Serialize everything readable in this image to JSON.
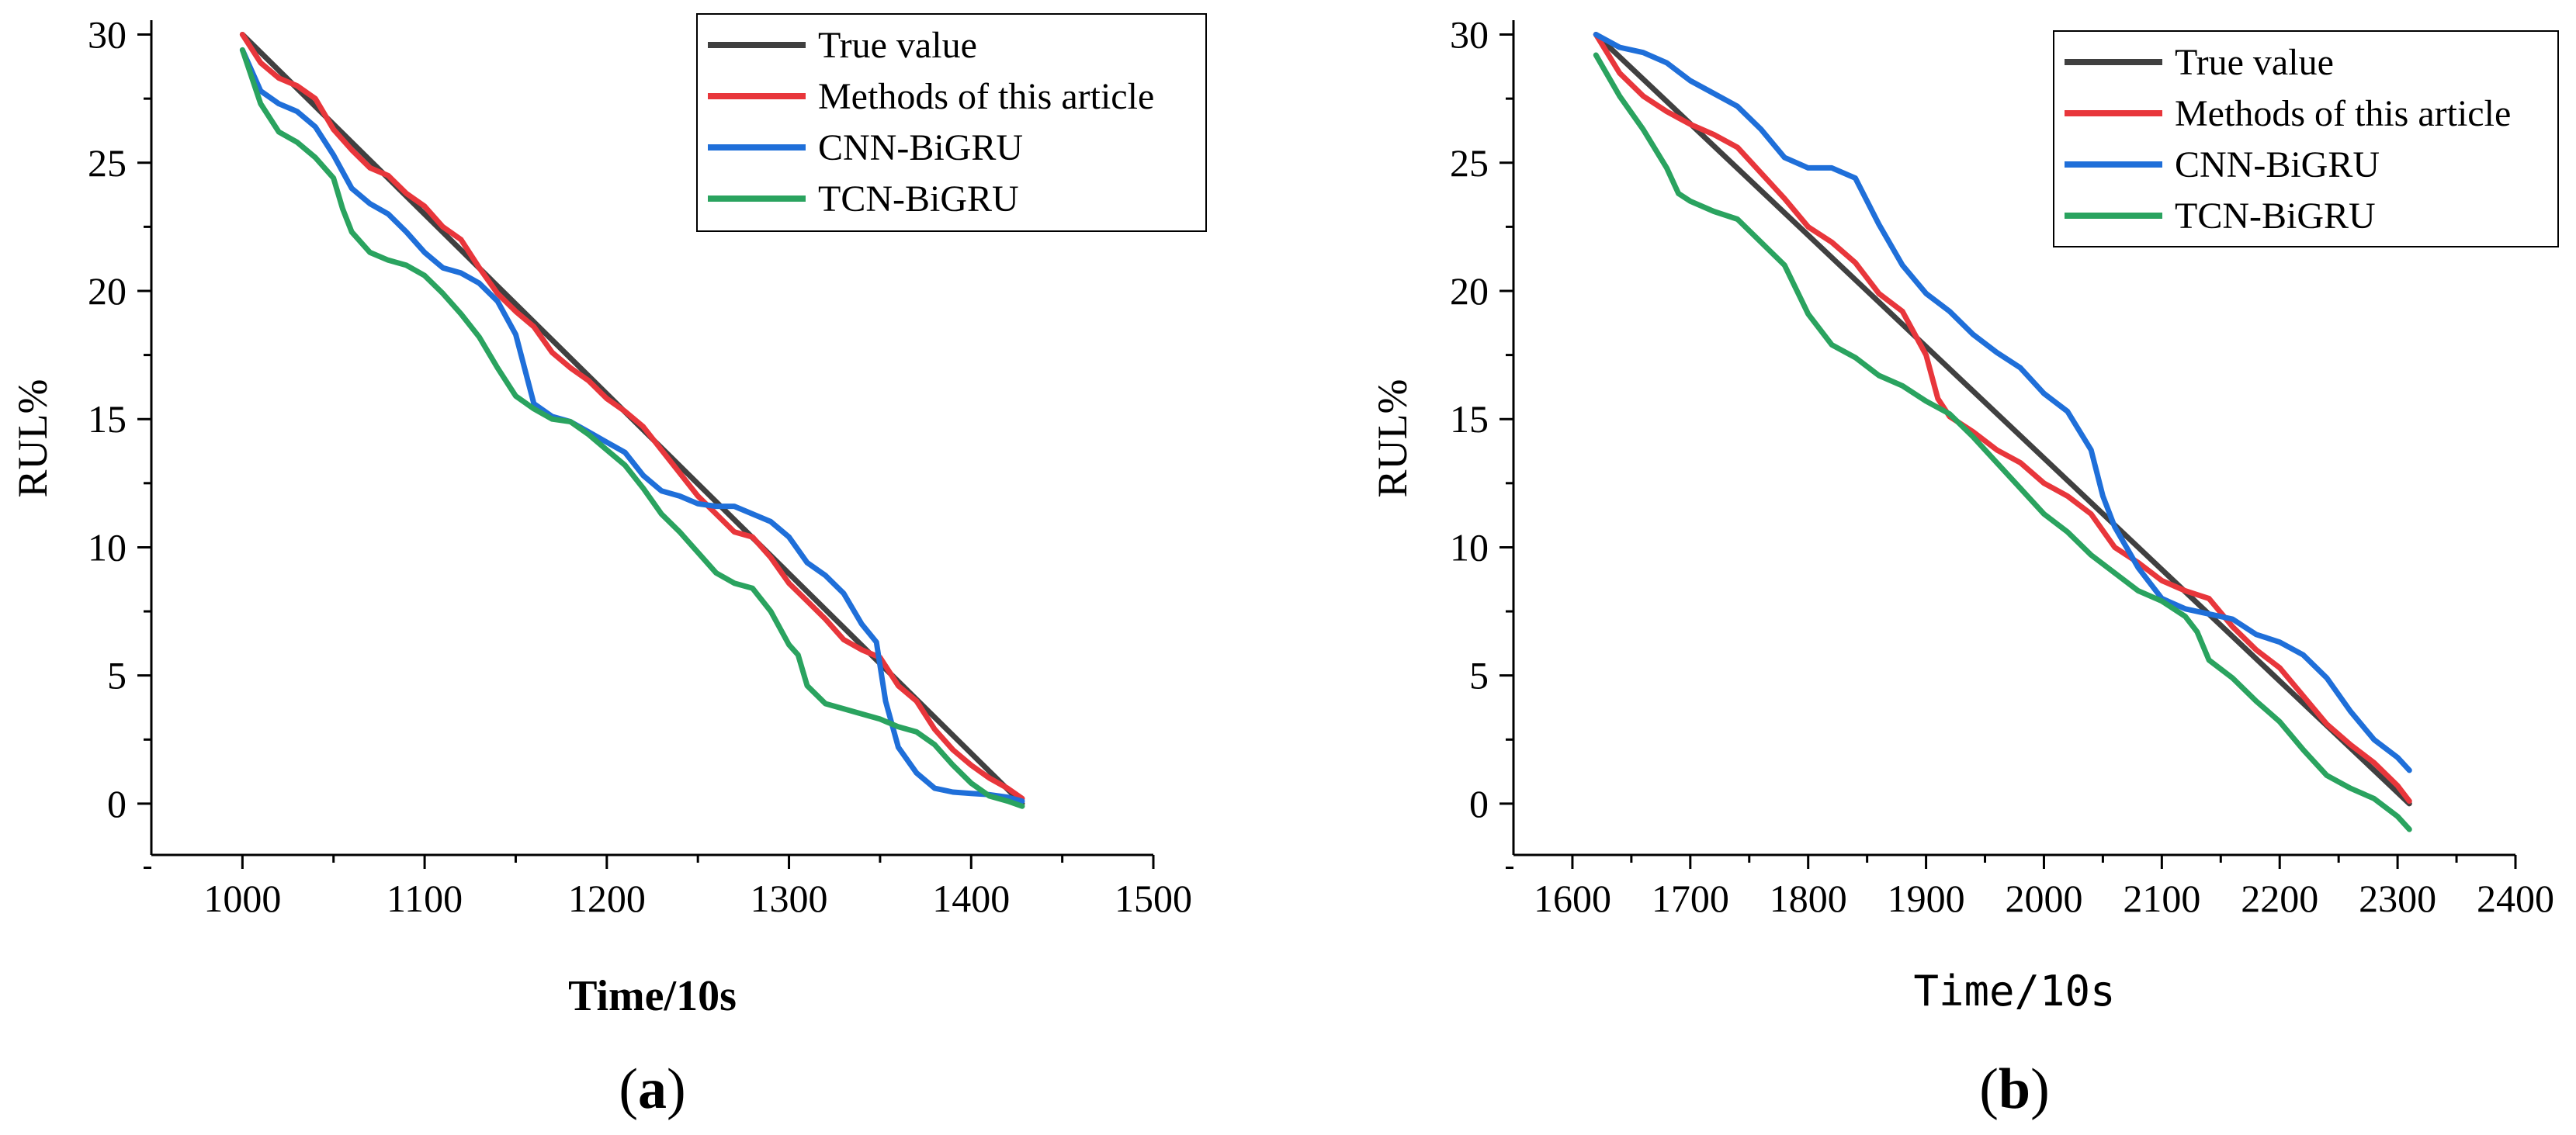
{
  "chart_data": [
    {
      "type": "line",
      "panel_label": {
        "open": "(",
        "letter": "a",
        "close": ")"
      },
      "title": "",
      "xlabel": "Time/10s",
      "ylabel": "RUL%",
      "xlim": [
        950,
        1500
      ],
      "ylim": [
        -2,
        30.5
      ],
      "xticks": [
        1000,
        1100,
        1200,
        1300,
        1400,
        1500
      ],
      "yticks": [
        0,
        5,
        10,
        15,
        20,
        25,
        30
      ],
      "grid": false,
      "legend_position": "top-right",
      "series": [
        {
          "name": "True value",
          "color": "#404040",
          "x": [
            1000,
            1428
          ],
          "y": [
            30,
            0
          ]
        },
        {
          "name": "Methods of this article",
          "color": "#e8363b",
          "x": [
            1000,
            1010,
            1020,
            1030,
            1040,
            1050,
            1060,
            1070,
            1080,
            1090,
            1100,
            1110,
            1120,
            1130,
            1140,
            1150,
            1160,
            1170,
            1180,
            1190,
            1200,
            1210,
            1220,
            1230,
            1240,
            1250,
            1260,
            1270,
            1280,
            1290,
            1300,
            1310,
            1320,
            1330,
            1340,
            1350,
            1360,
            1370,
            1380,
            1390,
            1400,
            1410,
            1420,
            1428
          ],
          "y": [
            30,
            28.9,
            28.3,
            28,
            27.5,
            26.3,
            25.5,
            24.8,
            24.5,
            23.8,
            23.3,
            22.5,
            22,
            20.9,
            19.9,
            19.2,
            18.6,
            17.6,
            17,
            16.5,
            15.8,
            15.3,
            14.7,
            13.8,
            12.9,
            12,
            11.3,
            10.6,
            10.4,
            9.6,
            8.6,
            7.9,
            7.2,
            6.4,
            6,
            5.7,
            4.6,
            4,
            2.9,
            2.1,
            1.5,
            1,
            0.6,
            0.2
          ]
        },
        {
          "name": "CNN-BiGRU",
          "color": "#1f6fd9",
          "x": [
            1000,
            1010,
            1020,
            1030,
            1040,
            1050,
            1060,
            1070,
            1080,
            1090,
            1100,
            1110,
            1120,
            1130,
            1140,
            1150,
            1160,
            1170,
            1180,
            1190,
            1200,
            1210,
            1220,
            1230,
            1240,
            1250,
            1260,
            1270,
            1280,
            1290,
            1300,
            1310,
            1320,
            1330,
            1340,
            1348,
            1353,
            1360,
            1370,
            1380,
            1390,
            1400,
            1410,
            1420,
            1428
          ],
          "y": [
            29.4,
            27.8,
            27.3,
            27,
            26.4,
            25.3,
            24,
            23.4,
            23,
            22.3,
            21.5,
            20.9,
            20.7,
            20.3,
            19.6,
            18.3,
            15.6,
            15.1,
            14.9,
            14.5,
            14.1,
            13.7,
            12.8,
            12.2,
            12,
            11.7,
            11.6,
            11.6,
            11.3,
            11,
            10.4,
            9.4,
            8.9,
            8.2,
            7,
            6.3,
            4,
            2.2,
            1.2,
            0.6,
            0.45,
            0.4,
            0.35,
            0.25,
            0.1
          ]
        },
        {
          "name": "TCN-BiGRU",
          "color": "#2aa35f",
          "x": [
            1000,
            1010,
            1020,
            1030,
            1040,
            1050,
            1055,
            1060,
            1070,
            1080,
            1090,
            1100,
            1110,
            1120,
            1130,
            1140,
            1150,
            1160,
            1170,
            1180,
            1190,
            1200,
            1210,
            1220,
            1230,
            1240,
            1250,
            1260,
            1270,
            1280,
            1290,
            1300,
            1305,
            1310,
            1320,
            1330,
            1340,
            1350,
            1360,
            1370,
            1380,
            1390,
            1400,
            1410,
            1420,
            1428
          ],
          "y": [
            29.4,
            27.3,
            26.2,
            25.8,
            25.2,
            24.4,
            23.2,
            22.3,
            21.5,
            21.2,
            21,
            20.6,
            19.9,
            19.1,
            18.2,
            17,
            15.9,
            15.4,
            15,
            14.9,
            14.4,
            13.8,
            13.2,
            12.3,
            11.3,
            10.6,
            9.8,
            9,
            8.6,
            8.4,
            7.5,
            6.2,
            5.8,
            4.6,
            3.9,
            3.7,
            3.5,
            3.3,
            3,
            2.8,
            2.3,
            1.5,
            0.8,
            0.3,
            0.1,
            -0.1
          ]
        }
      ]
    },
    {
      "type": "line",
      "panel_label": {
        "open": "(",
        "letter": "b",
        "close": ")"
      },
      "title": "",
      "xlabel": "Time/10s",
      "ylabel": "RUL%",
      "xlim": [
        1550,
        2400
      ],
      "ylim": [
        -2,
        30.5
      ],
      "xticks": [
        1600,
        1700,
        1800,
        1900,
        2000,
        2100,
        2200,
        2300,
        2400
      ],
      "yticks": [
        0,
        5,
        10,
        15,
        20,
        25,
        30
      ],
      "grid": false,
      "legend_position": "top-right",
      "series": [
        {
          "name": "True value",
          "color": "#404040",
          "x": [
            1620,
            2310
          ],
          "y": [
            30,
            0
          ]
        },
        {
          "name": "Methods of this article",
          "color": "#e8363b",
          "x": [
            1620,
            1640,
            1660,
            1680,
            1700,
            1720,
            1740,
            1760,
            1780,
            1800,
            1820,
            1840,
            1860,
            1880,
            1900,
            1910,
            1920,
            1940,
            1960,
            1980,
            2000,
            2020,
            2040,
            2060,
            2080,
            2100,
            2120,
            2140,
            2160,
            2180,
            2200,
            2220,
            2240,
            2260,
            2280,
            2300,
            2310
          ],
          "y": [
            30,
            28.5,
            27.6,
            27,
            26.5,
            26.1,
            25.6,
            24.6,
            23.6,
            22.5,
            21.9,
            21.1,
            19.9,
            19.2,
            17.5,
            15.8,
            15.1,
            14.5,
            13.8,
            13.3,
            12.5,
            12,
            11.3,
            10,
            9.4,
            8.7,
            8.3,
            8,
            6.9,
            6,
            5.3,
            4.2,
            3.1,
            2.3,
            1.6,
            0.7,
            0.1
          ]
        },
        {
          "name": "CNN-BiGRU",
          "color": "#1f6fd9",
          "x": [
            1620,
            1640,
            1660,
            1680,
            1700,
            1720,
            1740,
            1760,
            1780,
            1800,
            1820,
            1840,
            1860,
            1880,
            1900,
            1920,
            1940,
            1960,
            1980,
            2000,
            2020,
            2040,
            2050,
            2060,
            2080,
            2100,
            2120,
            2140,
            2160,
            2180,
            2200,
            2220,
            2240,
            2260,
            2280,
            2300,
            2310
          ],
          "y": [
            30,
            29.5,
            29.3,
            28.9,
            28.2,
            27.7,
            27.2,
            26.3,
            25.2,
            24.8,
            24.8,
            24.4,
            22.6,
            21,
            19.9,
            19.2,
            18.3,
            17.6,
            17,
            16,
            15.3,
            13.8,
            12,
            10.8,
            9.2,
            8,
            7.6,
            7.4,
            7.2,
            6.6,
            6.3,
            5.8,
            4.9,
            3.6,
            2.5,
            1.8,
            1.3
          ]
        },
        {
          "name": "TCN-BiGRU",
          "color": "#2aa35f",
          "x": [
            1620,
            1640,
            1660,
            1680,
            1690,
            1700,
            1720,
            1740,
            1760,
            1780,
            1800,
            1820,
            1840,
            1860,
            1880,
            1900,
            1920,
            1940,
            1960,
            1980,
            2000,
            2020,
            2040,
            2060,
            2080,
            2100,
            2120,
            2130,
            2140,
            2160,
            2180,
            2200,
            2220,
            2240,
            2260,
            2280,
            2300,
            2310
          ],
          "y": [
            29.2,
            27.6,
            26.3,
            24.8,
            23.8,
            23.5,
            23.1,
            22.8,
            21.9,
            21,
            19.1,
            17.9,
            17.4,
            16.7,
            16.3,
            15.7,
            15.2,
            14.3,
            13.3,
            12.3,
            11.3,
            10.6,
            9.7,
            9,
            8.3,
            7.9,
            7.3,
            6.7,
            5.6,
            4.9,
            4,
            3.2,
            2.1,
            1.1,
            0.6,
            0.2,
            -0.5,
            -1
          ]
        }
      ]
    }
  ]
}
